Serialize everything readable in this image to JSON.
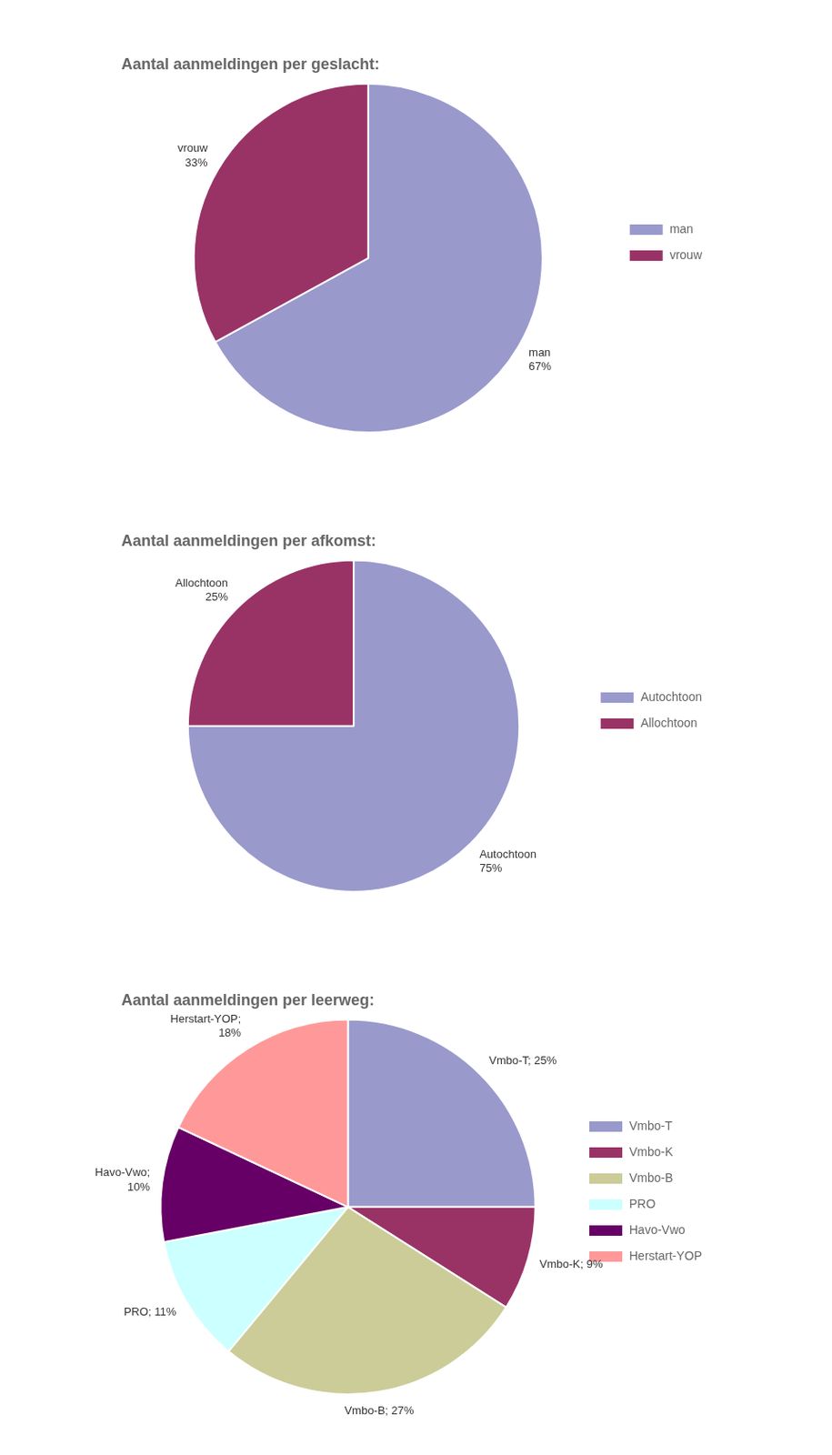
{
  "chart_data": [
    {
      "type": "pie",
      "title": "Aantal aanmeldingen per geslacht:",
      "categories": [
        "man",
        "vrouw"
      ],
      "values": [
        67,
        33
      ],
      "colors": [
        "#9999cc",
        "#993366"
      ],
      "data_labels": true,
      "value_labels": [
        "man\n67%",
        "vrouw\n33%"
      ],
      "legend": "right"
    },
    {
      "type": "pie",
      "title": "Aantal aanmeldingen per afkomst:",
      "categories": [
        "Autochtoon",
        "Allochtoon"
      ],
      "values": [
        75,
        25
      ],
      "colors": [
        "#9999cc",
        "#993366"
      ],
      "data_labels": true,
      "value_labels": [
        "Autochtoon\n75%",
        "Allochtoon\n25%"
      ],
      "legend": "right"
    },
    {
      "type": "pie",
      "title": "Aantal aanmeldingen per leerweg:",
      "categories": [
        "Vmbo-T",
        "Vmbo-K",
        "Vmbo-B",
        "PRO",
        "Havo-Vwo",
        "Herstart-YOP"
      ],
      "values": [
        25,
        9,
        27,
        11,
        10,
        18
      ],
      "colors": [
        "#9999cc",
        "#993366",
        "#cccc99",
        "#ccffff",
        "#660066",
        "#ff9999"
      ],
      "data_labels": true,
      "value_labels": [
        "Vmbo-T; 25%",
        "Vmbo-K; 9%",
        "Vmbo-B; 27%",
        "PRO; 11%",
        "Havo-Vwo;\n10%",
        "Herstart-YOP;\n18%"
      ],
      "legend": "right"
    }
  ]
}
